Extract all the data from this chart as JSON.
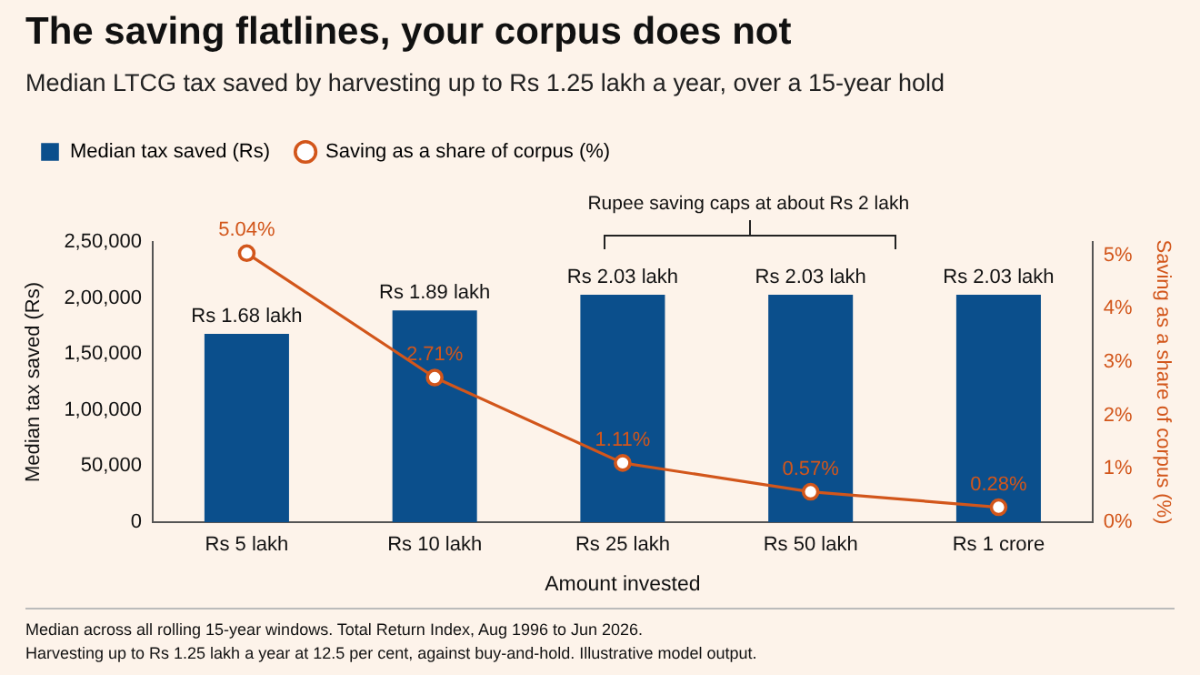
{
  "chart_data": {
    "type": "bar",
    "title": "The saving flatlines, your corpus does not",
    "subtitle": "Median LTCG tax saved by harvesting up to Rs 1.25 lakh a year, over a 15-year hold",
    "xlabel": "Amount invested",
    "ylabel": "Median tax saved (Rs)",
    "y2label": "Saving as a share of corpus (%)",
    "categories": [
      "Rs 5 lakh",
      "Rs 10 lakh",
      "Rs 25 lakh",
      "Rs 50 lakh",
      "Rs 1 crore"
    ],
    "series": [
      {
        "name": "Median tax saved (Rs)",
        "color": "#0b4f8c",
        "values": [
          168000,
          189000,
          203000,
          203000,
          203000
        ],
        "value_labels": [
          "Rs 1.68 lakh",
          "Rs 1.89 lakh",
          "Rs 2.03 lakh",
          "Rs 2.03 lakh",
          "Rs 2.03 lakh"
        ]
      },
      {
        "name": "Saving as a share of corpus (%)",
        "type": "line",
        "axis": "y2",
        "color": "#d2561b",
        "values": [
          5.04,
          2.71,
          1.11,
          0.57,
          0.28
        ],
        "value_labels": [
          "5.04%",
          "2.71%",
          "1.11%",
          "0.57%",
          "0.28%"
        ]
      }
    ],
    "ylim": [
      0,
      250000
    ],
    "yticks": [
      0,
      {
        "value": 50000,
        "label": "50,000"
      },
      {
        "value": 100000,
        "label": "1,00,000"
      },
      {
        "value": 150000,
        "label": "1,50,000"
      },
      {
        "value": 200000,
        "label": "2,00,000"
      },
      {
        "value": 250000,
        "label": "2,50,000"
      }
    ],
    "y2lim": [
      0,
      5.25
    ],
    "y2ticks": [
      {
        "value": 0,
        "label": "0%"
      },
      {
        "value": 1,
        "label": "1%"
      },
      {
        "value": 2,
        "label": "2%"
      },
      {
        "value": 3,
        "label": "3%"
      },
      {
        "value": 4,
        "label": "4%"
      },
      {
        "value": 5,
        "label": "5%"
      }
    ],
    "marker": "circle",
    "grid": false,
    "legend": "top left",
    "annotations": [
      "Rupee saving caps at about Rs 2 lakh",
      "Median across all rolling 15-year windows. Total Return Index, Aug 1996 to Jun 2026.",
      "Harvesting up to Rs 1.25 lakh a year at 12.5 per cent, against buy-and-hold. Illustrative model output."
    ]
  }
}
